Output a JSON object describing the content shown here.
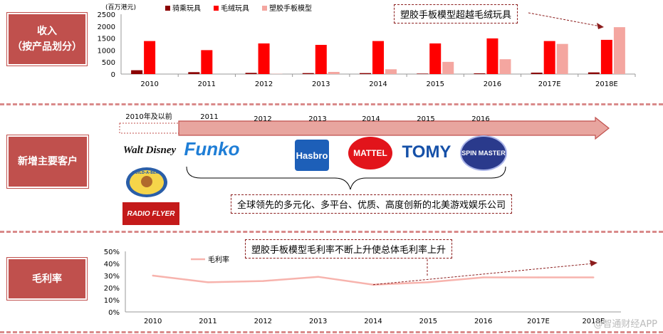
{
  "sections": {
    "revenue": {
      "title": "收入",
      "subtitle": "（按产品划分）"
    },
    "customers": {
      "title": "新增主要客户"
    },
    "margin": {
      "title": "毛利率"
    }
  },
  "callouts": {
    "revenue": "塑胶手板模型超越毛绒玩具",
    "customers": "全球领先的多元化、多平台、优质、高度创新的北美游戏娱乐公司",
    "margin": "塑胶手板模型毛利率不断上升使总体毛利率上升"
  },
  "timeline": {
    "first": "2010年及以前",
    "years": [
      "2011",
      "2012",
      "2013",
      "2014",
      "2015",
      "2016"
    ]
  },
  "logos": {
    "disney": "Walt Disney",
    "bear": "BUILD-A-BEAR",
    "flyer": "RADIO FLYER",
    "funko": "Funko",
    "hasbro": "Hasbro",
    "mattel": "MATTEL",
    "tomy": "TOMY",
    "spin": "SPIN MASTER"
  },
  "colors": {
    "section_red": "#c0504d",
    "riding": "#8b0000",
    "plush": "#ff0000",
    "plastic": "#f4a6a0",
    "arrow_fill": "#e8a59f",
    "arrow_stroke": "#c0504d",
    "line": "#f7b3ad"
  },
  "watermark": "@智通财经APP",
  "chart_data": [
    {
      "type": "bar",
      "unit": "(百万港元)",
      "categories": [
        "2010",
        "2011",
        "2012",
        "2013",
        "2014",
        "2015",
        "2016",
        "2017E",
        "2018E"
      ],
      "ylim": [
        0,
        2500
      ],
      "yticks": [
        0,
        500,
        1000,
        1500,
        2000,
        2500
      ],
      "legend": "top",
      "series": [
        {
          "name": "骑乘玩具",
          "values": [
            160,
            80,
            50,
            40,
            40,
            20,
            30,
            60,
            70
          ]
        },
        {
          "name": "毛绒玩具",
          "values": [
            1380,
            1000,
            1280,
            1220,
            1380,
            1280,
            1490,
            1380,
            1430
          ]
        },
        {
          "name": "塑胶手板模型",
          "values": [
            0,
            0,
            10,
            90,
            200,
            510,
            620,
            1260,
            1960
          ]
        }
      ]
    },
    {
      "type": "line",
      "categories": [
        "2010",
        "2011",
        "2012",
        "2013",
        "2014",
        "2015",
        "2016",
        "2017E",
        "2018E"
      ],
      "ylim": [
        0,
        50
      ],
      "yticks": [
        "0%",
        "10%",
        "20%",
        "30%",
        "40%",
        "50%"
      ],
      "legend": "top-left",
      "series": [
        {
          "name": "毛利率",
          "values": [
            30,
            24.5,
            25.5,
            29,
            22.5,
            24.5,
            28.5,
            28.5,
            28.5
          ]
        }
      ]
    }
  ]
}
